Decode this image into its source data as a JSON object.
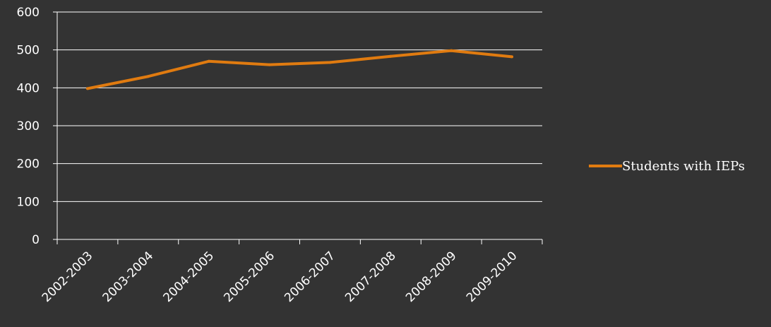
{
  "chart_data": {
    "type": "line",
    "categories": [
      "2002-2003",
      "2003-2004",
      "2004-2005",
      "2005-2006",
      "2006-2007",
      "2007-2008",
      "2008-2009",
      "2009-2010"
    ],
    "series": [
      {
        "name": "Students with IEPs",
        "values": [
          398,
          430,
          470,
          461,
          467,
          483,
          498,
          482
        ],
        "color": "#e07b10"
      }
    ],
    "yticks": [
      0,
      100,
      200,
      300,
      400,
      500,
      600
    ],
    "ylim": [
      0,
      600
    ],
    "grid": true,
    "legend_position": "right",
    "colors": {
      "background": "#333333",
      "axis": "#ffffff",
      "grid": "#ffffff",
      "text": "#ffffff"
    }
  }
}
